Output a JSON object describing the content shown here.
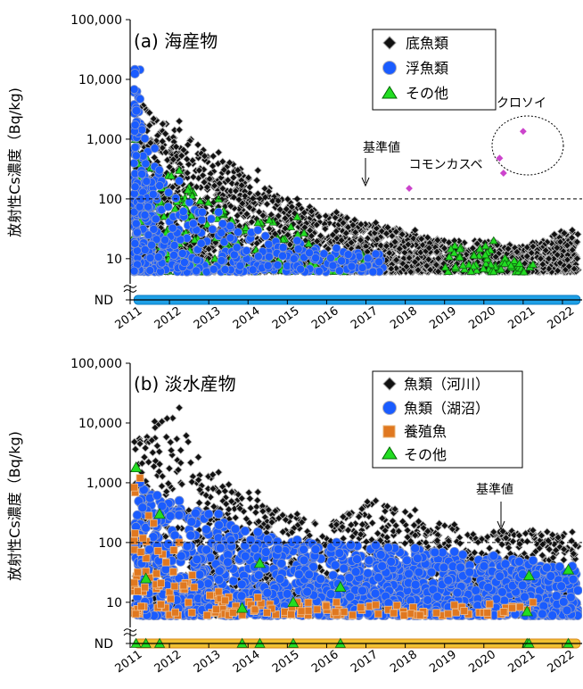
{
  "chart_data": [
    {
      "type": "scatter",
      "title": "(a)  海産物",
      "ylabel": "放射性Cs濃度（Bq/kg)",
      "yscale": "log",
      "ylim": [
        5,
        100000
      ],
      "yticks": [
        "100,000",
        "10,000",
        "1,000",
        "100",
        "10"
      ],
      "nd_label": "ND",
      "xlim": [
        2011,
        2022.5
      ],
      "xticks": [
        "2011",
        "2012",
        "2013",
        "2014",
        "2015",
        "2016",
        "2017",
        "2018",
        "2019",
        "2020",
        "2021",
        "2022"
      ],
      "reference_line": {
        "value": 100,
        "label": "基準値"
      },
      "annotations": [
        {
          "text": "コモンカスベ",
          "x": 2018.1,
          "y": 150
        },
        {
          "text": "クロソイ",
          "x": 2020.9,
          "y": 500
        }
      ],
      "legend_position": "top-right",
      "series": [
        {
          "name": "底魚類",
          "marker": "diamond",
          "color": "#111111",
          "summary": {
            "x_range": [
              2011.1,
              2022.4
            ],
            "y_max_by_year": {
              "2011": 5000,
              "2012": 2000,
              "2013": 600,
              "2014": 300,
              "2015": 100,
              "2016": 60,
              "2017": 40,
              "2018": 30,
              "2019": 20,
              "2020": 20,
              "2021": 16,
              "2022": 30
            }
          }
        },
        {
          "name": "浮魚類",
          "marker": "circle",
          "color": "#1a5cff",
          "summary": {
            "x_range": [
              2011.1,
              2017.5
            ],
            "y_max_by_year": {
              "2011": 14500,
              "2012": 200,
              "2013": 60,
              "2014": 30,
              "2015": 20,
              "2016": 15,
              "2017": 12
            }
          }
        },
        {
          "name": "その他",
          "marker": "triangle",
          "color": "#22dd22",
          "summary": {
            "x_range": [
              2011.1,
              2021.2
            ],
            "y_max_by_year": {
              "2011": 1200,
              "2012": 300,
              "2013": 100,
              "2014": 40,
              "2015": 50,
              "2016": 12,
              "2020": 20,
              "2021": 8
            }
          }
        },
        {
          "name": "コモンカスベ",
          "marker": "diamond",
          "color": "#cc44cc",
          "x": [
            2018.1
          ],
          "y": [
            150
          ]
        },
        {
          "name": "クロソイ",
          "marker": "diamond",
          "color": "#cc44cc",
          "x": [
            2020.4,
            2020.5,
            2021.0
          ],
          "y": [
            480,
            270,
            1350
          ]
        }
      ]
    },
    {
      "type": "scatter",
      "title": "(b)  淡水産物",
      "ylabel": "放射性Cs濃度（Bq/kg)",
      "yscale": "log",
      "ylim": [
        5,
        100000
      ],
      "yticks": [
        "100,000",
        "10,000",
        "1,000",
        "100",
        "10"
      ],
      "nd_label": "ND",
      "xlim": [
        2011,
        2022.5
      ],
      "xticks": [
        "2011",
        "2012",
        "2013",
        "2014",
        "2015",
        "2016",
        "2017",
        "2018",
        "2019",
        "2020",
        "2021",
        "2022"
      ],
      "reference_line": {
        "value": 100,
        "label": "基準値"
      },
      "legend_position": "top-right",
      "series": [
        {
          "name": "魚類（河川）",
          "marker": "diamond",
          "color": "#111111",
          "summary": {
            "x_range": [
              2011.1,
              2022.4
            ],
            "y_max_by_year": {
              "2011": 4500,
              "2012": 18000,
              "2013": 1500,
              "2014": 700,
              "2015": 300,
              "2016": 200,
              "2017": 500,
              "2018": 350,
              "2019": 200,
              "2020": 150,
              "2021": 160,
              "2022": 150
            }
          }
        },
        {
          "name": "魚類（湖沼）",
          "marker": "circle",
          "color": "#1a5cff",
          "summary": {
            "x_range": [
              2011.1,
              2022.4
            ],
            "y_max_by_year": {
              "2011": 1000,
              "2012": 500,
              "2013": 300,
              "2014": 150,
              "2015": 110,
              "2016": 100,
              "2017": 90,
              "2018": 80,
              "2019": 70,
              "2020": 60,
              "2021": 50,
              "2022": 40
            }
          }
        },
        {
          "name": "養殖魚",
          "marker": "square",
          "color": "#e07820",
          "summary": {
            "x_range": [
              2011.1,
              2021.3
            ],
            "y_max_by_year": {
              "2011": 1200,
              "2012": 100,
              "2013": 15,
              "2014": 12,
              "2015": 10,
              "2016": 10,
              "2017": 9,
              "2019": 9,
              "2021": 10
            }
          }
        },
        {
          "name": "その他",
          "marker": "triangle",
          "color": "#22dd22",
          "x": [
            2011.15,
            2011.4,
            2011.75,
            2013.85,
            2014.3,
            2015.15,
            2016.35,
            2021.1,
            2021.15,
            2022.15
          ],
          "y": [
            1800,
            25,
            300,
            8,
            45,
            10,
            18,
            7,
            28,
            35
          ]
        }
      ]
    }
  ]
}
